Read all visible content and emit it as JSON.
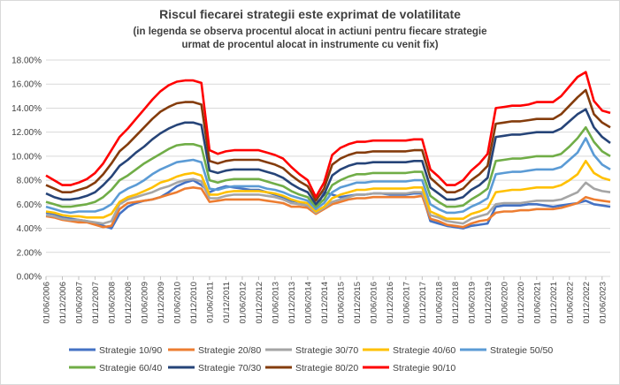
{
  "chart_data": {
    "type": "line",
    "title": "Riscul fiecarei strategii este exprimat de volatilitate",
    "subtitle_line1": "(in legenda se observa procentul alocat  in actiuni  pentru fiecare strategie",
    "subtitle_line2": "urmat de procentul alocat  in instrumente cu venit fix)",
    "xlabel": "",
    "ylabel": "",
    "ylim": [
      0,
      18
    ],
    "y_ticks": [
      "0.00%",
      "2.00%",
      "4.00%",
      "6.00%",
      "8.00%",
      "10.00%",
      "12.00%",
      "14.00%",
      "16.00%",
      "18.00%"
    ],
    "x_ticks": [
      "01/06/2006",
      "01/12/2006",
      "01/06/2007",
      "01/12/2007",
      "01/06/2008",
      "01/12/2008",
      "01/06/2009",
      "01/12/2009",
      "01/06/2010",
      "01/12/2010",
      "01/06/2011",
      "01/12/2011",
      "01/06/2012",
      "01/12/2012",
      "01/06/2013",
      "01/12/2013",
      "01/06/2014",
      "01/12/2014",
      "01/06/2015",
      "01/12/2015",
      "01/06/2016",
      "01/12/2016",
      "01/06/2017",
      "01/12/2017",
      "01/06/2018",
      "01/12/2018",
      "01/06/2019",
      "01/12/2019",
      "01/06/2020",
      "01/12/2020",
      "01/06/2021",
      "01/12/2021",
      "01/06/2022",
      "01/12/2022",
      "01/06/2023"
    ],
    "x_start": "2006-06",
    "x_end": "2023-09",
    "grid": true,
    "legend_position": "bottom",
    "x": [
      "2006-06",
      "2006-09",
      "2006-12",
      "2007-03",
      "2007-06",
      "2007-09",
      "2007-12",
      "2008-03",
      "2008-06",
      "2008-09",
      "2008-12",
      "2009-03",
      "2009-06",
      "2009-09",
      "2009-12",
      "2010-03",
      "2010-06",
      "2010-09",
      "2010-12",
      "2011-03",
      "2011-06",
      "2011-09",
      "2011-12",
      "2012-03",
      "2012-06",
      "2012-09",
      "2012-12",
      "2013-03",
      "2013-06",
      "2013-09",
      "2013-12",
      "2014-03",
      "2014-06",
      "2014-09",
      "2014-12",
      "2015-03",
      "2015-06",
      "2015-09",
      "2015-12",
      "2016-03",
      "2016-06",
      "2016-09",
      "2016-12",
      "2017-03",
      "2017-06",
      "2017-09",
      "2017-12",
      "2018-03",
      "2018-06",
      "2018-09",
      "2018-12",
      "2019-03",
      "2019-06",
      "2019-09",
      "2019-12",
      "2020-03",
      "2020-06",
      "2020-09",
      "2020-12",
      "2021-03",
      "2021-06",
      "2021-09",
      "2021-12",
      "2022-03",
      "2022-06",
      "2022-09",
      "2022-12",
      "2023-03",
      "2023-06",
      "2023-09"
    ],
    "series": [
      {
        "name": "Strategie 10/90",
        "color": "#4472c4",
        "values": [
          5.3,
          5.2,
          4.9,
          4.8,
          4.7,
          4.6,
          4.4,
          4.2,
          4.0,
          5.2,
          5.8,
          6.1,
          6.3,
          6.4,
          6.6,
          7.0,
          7.5,
          7.8,
          8.0,
          7.6,
          7.0,
          7.3,
          7.5,
          7.4,
          7.3,
          7.2,
          7.2,
          7.0,
          6.8,
          6.6,
          6.3,
          6.2,
          5.8,
          5.6,
          7.0,
          6.8,
          6.6,
          6.7,
          6.8,
          6.8,
          6.9,
          6.9,
          6.8,
          6.8,
          6.8,
          6.9,
          6.9,
          4.6,
          4.4,
          4.2,
          4.1,
          4.0,
          4.2,
          4.3,
          4.4,
          5.8,
          5.9,
          5.9,
          5.9,
          6.0,
          6.0,
          5.9,
          5.8,
          5.9,
          6.0,
          6.1,
          6.3,
          6.0,
          5.9,
          5.8
        ]
      },
      {
        "name": "Strategie 20/80",
        "color": "#ed7d31",
        "values": [
          5.0,
          4.9,
          4.7,
          4.6,
          4.5,
          4.5,
          4.3,
          4.1,
          4.2,
          5.6,
          6.1,
          6.2,
          6.3,
          6.4,
          6.6,
          6.8,
          7.0,
          7.3,
          7.4,
          7.3,
          6.2,
          6.3,
          6.4,
          6.4,
          6.4,
          6.4,
          6.4,
          6.3,
          6.2,
          6.1,
          5.8,
          5.8,
          5.7,
          5.2,
          5.6,
          6.0,
          6.2,
          6.4,
          6.5,
          6.5,
          6.6,
          6.6,
          6.6,
          6.6,
          6.6,
          6.6,
          6.7,
          4.8,
          4.6,
          4.3,
          4.2,
          4.1,
          4.4,
          4.6,
          4.7,
          5.3,
          5.4,
          5.4,
          5.5,
          5.5,
          5.6,
          5.6,
          5.6,
          5.7,
          5.9,
          6.1,
          6.6,
          6.4,
          6.3,
          6.2
        ]
      },
      {
        "name": "Strategie 30/70",
        "color": "#a5a5a5",
        "values": [
          5.1,
          5.0,
          4.8,
          4.7,
          4.7,
          4.6,
          4.5,
          4.4,
          4.6,
          6.0,
          6.4,
          6.6,
          6.8,
          7.0,
          7.3,
          7.5,
          7.8,
          8.0,
          8.1,
          7.9,
          6.5,
          6.5,
          6.7,
          6.8,
          6.8,
          6.8,
          6.8,
          6.7,
          6.6,
          6.4,
          6.1,
          6.0,
          5.9,
          5.3,
          5.7,
          6.2,
          6.4,
          6.6,
          6.8,
          6.8,
          6.9,
          6.9,
          6.9,
          6.9,
          6.9,
          7.0,
          7.0,
          5.1,
          4.9,
          4.6,
          4.5,
          4.4,
          4.8,
          5.0,
          5.2,
          6.0,
          6.1,
          6.1,
          6.1,
          6.2,
          6.3,
          6.3,
          6.3,
          6.4,
          6.7,
          7.0,
          7.8,
          7.3,
          7.1,
          7.0
        ]
      },
      {
        "name": "Strategie 40/60",
        "color": "#ffc000",
        "values": [
          5.4,
          5.3,
          5.1,
          5.0,
          5.0,
          4.9,
          4.9,
          4.9,
          5.2,
          6.2,
          6.6,
          6.8,
          7.1,
          7.4,
          7.8,
          8.0,
          8.3,
          8.5,
          8.6,
          8.4,
          6.8,
          6.8,
          7.0,
          7.1,
          7.1,
          7.1,
          7.1,
          7.0,
          6.9,
          6.7,
          6.4,
          6.2,
          6.1,
          5.4,
          5.8,
          6.5,
          6.8,
          7.0,
          7.2,
          7.2,
          7.3,
          7.3,
          7.3,
          7.3,
          7.3,
          7.4,
          7.4,
          5.4,
          5.1,
          4.8,
          4.8,
          4.8,
          5.2,
          5.4,
          5.7,
          7.0,
          7.1,
          7.2,
          7.2,
          7.3,
          7.4,
          7.4,
          7.4,
          7.6,
          8.0,
          8.5,
          9.6,
          8.6,
          8.2,
          8.0
        ]
      },
      {
        "name": "Strategie 50/50",
        "color": "#5b9bd5",
        "values": [
          5.8,
          5.6,
          5.4,
          5.3,
          5.4,
          5.4,
          5.4,
          5.6,
          6.0,
          6.9,
          7.3,
          7.6,
          8.0,
          8.5,
          8.9,
          9.2,
          9.5,
          9.6,
          9.7,
          9.5,
          7.3,
          7.2,
          7.4,
          7.5,
          7.5,
          7.5,
          7.5,
          7.3,
          7.2,
          7.0,
          6.7,
          6.5,
          6.3,
          5.6,
          6.1,
          7.0,
          7.4,
          7.6,
          7.8,
          7.8,
          7.9,
          7.9,
          7.9,
          7.9,
          7.9,
          8.0,
          8.0,
          6.0,
          5.6,
          5.3,
          5.3,
          5.4,
          5.8,
          6.1,
          6.5,
          8.5,
          8.6,
          8.7,
          8.7,
          8.8,
          8.9,
          8.9,
          8.9,
          9.1,
          9.7,
          10.3,
          11.5,
          10.1,
          9.3,
          8.9
        ]
      },
      {
        "name": "Strategie 60/40",
        "color": "#70ad47",
        "values": [
          6.2,
          6.0,
          5.8,
          5.8,
          5.9,
          6.0,
          6.2,
          6.6,
          7.2,
          8.0,
          8.4,
          8.9,
          9.4,
          9.8,
          10.2,
          10.6,
          10.9,
          11.0,
          11.0,
          10.8,
          8.0,
          7.8,
          8.0,
          8.1,
          8.1,
          8.1,
          8.1,
          7.9,
          7.7,
          7.5,
          7.1,
          6.8,
          6.6,
          5.8,
          6.4,
          7.6,
          8.0,
          8.3,
          8.5,
          8.5,
          8.6,
          8.6,
          8.6,
          8.6,
          8.6,
          8.7,
          8.7,
          6.7,
          6.2,
          5.8,
          5.8,
          5.9,
          6.4,
          6.8,
          7.3,
          9.6,
          9.7,
          9.8,
          9.8,
          9.9,
          10.0,
          10.0,
          10.0,
          10.2,
          10.8,
          11.5,
          12.4,
          11.2,
          10.4,
          10.0
        ]
      },
      {
        "name": "Strategie 70/30",
        "color": "#264478",
        "values": [
          6.9,
          6.6,
          6.4,
          6.4,
          6.5,
          6.7,
          7.0,
          7.6,
          8.3,
          9.2,
          9.7,
          10.3,
          10.8,
          11.4,
          11.9,
          12.3,
          12.6,
          12.8,
          12.8,
          12.6,
          8.8,
          8.6,
          8.8,
          8.9,
          8.9,
          8.9,
          8.9,
          8.7,
          8.5,
          8.2,
          7.7,
          7.3,
          7.0,
          6.0,
          6.8,
          8.4,
          8.9,
          9.2,
          9.4,
          9.4,
          9.5,
          9.5,
          9.5,
          9.5,
          9.5,
          9.6,
          9.6,
          7.4,
          6.9,
          6.4,
          6.4,
          6.6,
          7.2,
          7.6,
          8.2,
          11.6,
          11.7,
          11.8,
          11.8,
          11.9,
          12.0,
          12.0,
          12.0,
          12.3,
          12.9,
          13.5,
          13.9,
          12.4,
          11.6,
          11.1
        ]
      },
      {
        "name": "Strategie 80/20",
        "color": "#843c0c",
        "values": [
          7.6,
          7.3,
          7.0,
          7.0,
          7.2,
          7.4,
          7.8,
          8.5,
          9.4,
          10.4,
          11.0,
          11.7,
          12.4,
          13.1,
          13.7,
          14.1,
          14.4,
          14.5,
          14.5,
          14.3,
          9.6,
          9.4,
          9.6,
          9.7,
          9.7,
          9.7,
          9.7,
          9.5,
          9.3,
          9.0,
          8.4,
          7.9,
          7.5,
          6.3,
          7.3,
          9.3,
          9.8,
          10.1,
          10.3,
          10.3,
          10.4,
          10.4,
          10.4,
          10.4,
          10.4,
          10.5,
          10.5,
          8.2,
          7.6,
          7.0,
          7.0,
          7.3,
          8.0,
          8.5,
          9.2,
          12.7,
          12.8,
          12.9,
          12.9,
          13.0,
          13.1,
          13.1,
          13.1,
          13.5,
          14.2,
          14.9,
          15.5,
          13.5,
          12.8,
          12.4
        ]
      },
      {
        "name": "Strategie 90/10",
        "color": "#ff0000",
        "values": [
          8.4,
          8.0,
          7.6,
          7.6,
          7.8,
          8.1,
          8.6,
          9.4,
          10.5,
          11.6,
          12.3,
          13.1,
          13.9,
          14.7,
          15.4,
          15.9,
          16.2,
          16.3,
          16.3,
          16.1,
          10.5,
          10.2,
          10.4,
          10.5,
          10.5,
          10.5,
          10.5,
          10.3,
          10.1,
          9.8,
          9.1,
          8.5,
          8.0,
          6.6,
          7.8,
          10.1,
          10.7,
          11.0,
          11.2,
          11.2,
          11.3,
          11.3,
          11.3,
          11.3,
          11.3,
          11.4,
          11.4,
          8.9,
          8.3,
          7.6,
          7.6,
          8.0,
          8.8,
          9.4,
          10.2,
          14.0,
          14.1,
          14.2,
          14.2,
          14.3,
          14.5,
          14.5,
          14.5,
          15.0,
          15.8,
          16.6,
          17.0,
          14.6,
          13.8,
          13.6
        ]
      }
    ]
  }
}
